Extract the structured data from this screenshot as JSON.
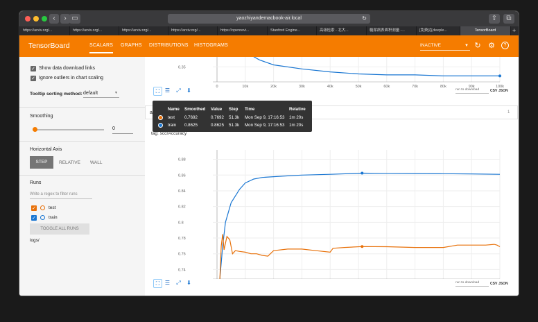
{
  "browser": {
    "url": "yaozhiyandemacbook-air.local",
    "tabs": [
      "https://arxiv.org/...",
      "https://arxiv.org/...",
      "https://arxiv.org/...",
      "https://arxiv.org/...",
      "https://openrevi...",
      "Stanford Engine...",
      "高级检索 - 北大...",
      "糖尿病表面积测量 -...",
      "[免费]在deeple...",
      "TensorBoard"
    ]
  },
  "header": {
    "brand": "TensorBoard",
    "nav": [
      "SCALARS",
      "GRAPHS",
      "DISTRIBUTIONS",
      "HISTOGRAMS"
    ],
    "status": "INACTIVE",
    "accent": "#f57c00"
  },
  "sidebar": {
    "show_download": "Show data download links",
    "ignore_outliers": "Ignore outliers in chart scaling",
    "tooltip_label": "Tooltip sorting method:",
    "tooltip_value": "default",
    "smoothing_label": "Smoothing",
    "smoothing_value": "0",
    "haxis_label": "Horizontal Axis",
    "haxis_options": [
      "STEP",
      "RELATIVE",
      "WALL"
    ],
    "runs_label": "Runs",
    "runs_placeholder": "Write a regex to filter runs",
    "runs": [
      {
        "name": "test",
        "color": "#e8710a"
      },
      {
        "name": "train",
        "color": "#1976d2"
      }
    ],
    "toggle_label": "TOGGLE ALL RUNS",
    "logdir": "logs/"
  },
  "tooltip": {
    "headers": [
      "Name",
      "Smoothed",
      "Value",
      "Step",
      "Time",
      "Relative"
    ],
    "rows": [
      {
        "name": "test",
        "smoothed": "0.7692",
        "value": "0.7692",
        "step": "51.3k",
        "time": "Mon Sep 9, 17:16:53",
        "relative": "1m 20s",
        "color": "#e8710a"
      },
      {
        "name": "train",
        "smoothed": "0.8625",
        "value": "0.8625",
        "step": "51.3k",
        "time": "Mon Sep 9, 17:16:53",
        "relative": "1m 20s",
        "color": "#1976d2"
      }
    ]
  },
  "section": {
    "title_partial": "a",
    "count": "1"
  },
  "chart_title_partial": "tag: sccrAccuracy",
  "download": {
    "select": "run to download",
    "csv": "CSV",
    "json": "JSON"
  },
  "chart_data": [
    {
      "type": "line",
      "title": "",
      "x_ticks": [
        "0",
        "10k",
        "20k",
        "30k",
        "40k",
        "50k",
        "60k",
        "70k",
        "80k",
        "90k",
        "100k"
      ],
      "y_ticks": [
        "0.35"
      ],
      "series": [
        {
          "name": "train",
          "x": [
            0,
            5000,
            10000,
            15000,
            20000,
            30000,
            40000,
            50000,
            60000,
            70000,
            80000,
            90000,
            100000
          ],
          "values": [
            0.48,
            0.38,
            0.365,
            0.357,
            0.352,
            0.348,
            0.345,
            0.343,
            0.342,
            0.342,
            0.341,
            0.341,
            0.341
          ]
        }
      ]
    },
    {
      "type": "line",
      "title": "",
      "x_ticks": [
        "0",
        "10k",
        "20k",
        "30k",
        "40k",
        "50k",
        "60k",
        "70k",
        "80k",
        "90k",
        "100k"
      ],
      "y_ticks": [
        "0.88",
        "0.86",
        "0.84",
        "0.82",
        "0.8",
        "0.78",
        "0.76",
        "0.74"
      ],
      "ylim": [
        0.728,
        0.892
      ],
      "series": [
        {
          "name": "train",
          "x": [
            1000,
            2000,
            3000,
            5000,
            8000,
            10000,
            13000,
            16000,
            20000,
            25000,
            30000,
            40000,
            51300,
            60000,
            70000,
            80000,
            90000,
            100000
          ],
          "values": [
            0.728,
            0.77,
            0.8,
            0.825,
            0.842,
            0.85,
            0.855,
            0.857,
            0.858,
            0.859,
            0.86,
            0.861,
            0.8625,
            0.8622,
            0.862,
            0.8618,
            0.8615,
            0.861
          ]
        },
        {
          "name": "test",
          "x": [
            1000,
            1500,
            2000,
            2500,
            3500,
            4500,
            5500,
            6500,
            8000,
            10000,
            12000,
            14000,
            16000,
            18000,
            20000,
            25000,
            30000,
            35000,
            40000,
            41000,
            45000,
            51300,
            60000,
            70000,
            80000,
            85000,
            90000,
            95000,
            98000,
            99000,
            100000
          ],
          "values": [
            0.728,
            0.77,
            0.785,
            0.765,
            0.782,
            0.778,
            0.76,
            0.764,
            0.763,
            0.762,
            0.76,
            0.76,
            0.758,
            0.757,
            0.764,
            0.766,
            0.766,
            0.764,
            0.762,
            0.767,
            0.768,
            0.7692,
            0.769,
            0.768,
            0.768,
            0.771,
            0.771,
            0.771,
            0.772,
            0.771,
            0.769
          ]
        }
      ]
    }
  ]
}
